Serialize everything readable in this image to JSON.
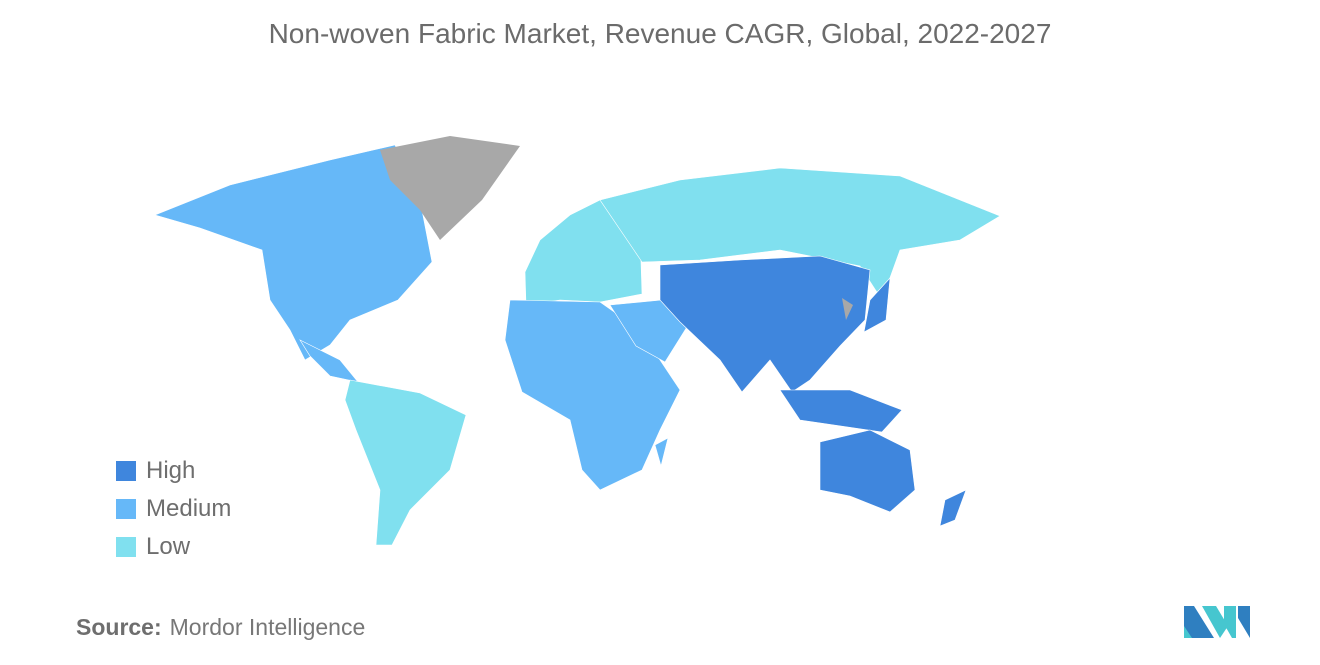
{
  "title": "Non-woven Fabric Market, Revenue CAGR, Global, 2022-2027",
  "legend": [
    {
      "label": "High",
      "color": "#3f86dd"
    },
    {
      "label": "Medium",
      "color": "#66b8f8"
    },
    {
      "label": "Low",
      "color": "#80e0ef"
    }
  ],
  "no_data_color": "#a8a8a8",
  "regions": {
    "north_america": "Medium",
    "south_america": "Low",
    "europe": "Low",
    "russia": "Low",
    "africa": "Medium",
    "middle_east": "Medium",
    "asia": "High",
    "oceania": "High"
  },
  "source": {
    "label": "Source:",
    "text": "Mordor Intelligence"
  }
}
